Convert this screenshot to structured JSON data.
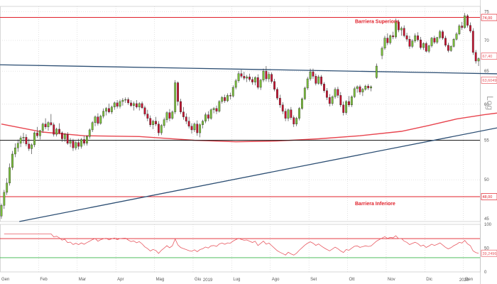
{
  "toolbar": {
    "buttons": [
      "up-triangle-icon",
      "z-icon",
      "zoom-out-icon",
      "crosshair-icon"
    ],
    "badge": "0"
  },
  "colors": {
    "up_fill": "#7bc23a",
    "down_fill": "#c8102e",
    "barrier": "#e0202a",
    "sma": "#e8454f",
    "trend": "#2c4e73",
    "support": "#111111",
    "rsi_line": "#e85a62",
    "rsi_upper": "#e0202a",
    "rsi_lower": "#39b54a"
  },
  "chart_data": {
    "type": "candlestick",
    "yscale": "log",
    "ylim": [
      45.2,
      76.0
    ],
    "yticks": [
      45,
      50,
      55,
      60,
      65,
      70,
      75
    ],
    "scale_label": "Log",
    "xlabels": [
      "Gen",
      "Feb",
      "Mar",
      "Apr",
      "Mag",
      "Giu",
      "Lug",
      "Ago",
      "Set",
      "Ott",
      "Nov",
      "Dic",
      "Gen"
    ],
    "year_labels": [
      "2019",
      "2020"
    ],
    "price_labels": [
      {
        "value": 74.0,
        "text": "74,00"
      },
      {
        "value": 67.4,
        "text": "67,40"
      },
      {
        "value": 63.6,
        "text": "63,6049"
      },
      {
        "value": 48.0,
        "text": "48,00"
      }
    ],
    "barriers": [
      {
        "name": "Barriera Superiore",
        "value": 74.0
      },
      {
        "name": "Barriera Inferiore",
        "value": 48.0
      }
    ],
    "support_level": 55.0,
    "upper_trendline": {
      "from": [
        0,
        66.0
      ],
      "to": [
        268,
        63.9
      ]
    },
    "lower_trendline": {
      "from": [
        6.5,
        45.2
      ],
      "to": [
        268,
        63.6
      ]
    },
    "sma": [
      [
        0,
        57.2
      ],
      [
        15,
        56.1
      ],
      [
        30,
        55.6
      ],
      [
        50,
        55.5
      ],
      [
        70,
        55.0
      ],
      [
        85,
        54.8
      ],
      [
        100,
        54.9
      ],
      [
        115,
        55.2
      ],
      [
        130,
        55.6
      ],
      [
        145,
        56.2
      ],
      [
        155,
        57.0
      ],
      [
        165,
        57.9
      ],
      [
        175,
        58.5
      ],
      [
        185,
        59.0
      ],
      [
        195,
        59.5
      ],
      [
        205,
        60.1
      ],
      [
        215,
        60.8
      ],
      [
        225,
        61.3
      ],
      [
        235,
        61.8
      ],
      [
        245,
        62.3
      ],
      [
        255,
        62.8
      ],
      [
        268,
        63.6
      ]
    ],
    "channel": {
      "top": 73.0,
      "bottom": 67.4,
      "x_start": 205,
      "x_end": 268
    },
    "rsi": {
      "levels": [
        70,
        30
      ],
      "last_value": 39.2496,
      "last_label": "39,2496",
      "ticks": [
        100,
        50,
        0
      ]
    },
    "ohlc": [
      [
        0.0,
        45.8,
        47.2,
        45.5,
        47.0
      ],
      [
        1.0,
        47.0,
        48.8,
        46.6,
        48.5
      ],
      [
        2.0,
        48.5,
        50.2,
        48.2,
        49.6
      ],
      [
        3.0,
        49.6,
        52.0,
        49.3,
        51.5
      ],
      [
        4.0,
        51.5,
        53.6,
        51.2,
        53.2
      ],
      [
        5.0,
        53.2,
        54.6,
        52.8,
        54.0
      ],
      [
        6.0,
        54.0,
        55.1,
        53.5,
        54.6
      ],
      [
        7.0,
        54.6,
        55.6,
        54.1,
        55.3
      ],
      [
        8.0,
        55.3,
        56.0,
        54.6,
        55.4
      ],
      [
        9.0,
        55.4,
        55.8,
        54.2,
        54.5
      ],
      [
        10.0,
        54.5,
        55.2,
        53.6,
        53.9
      ],
      [
        11.0,
        53.9,
        54.6,
        53.2,
        54.4
      ],
      [
        12.0,
        54.4,
        56.2,
        54.1,
        56.0
      ],
      [
        13.0,
        56.0,
        56.8,
        55.3,
        55.6
      ],
      [
        14.0,
        55.6,
        56.4,
        55.1,
        56.3
      ],
      [
        15.0,
        56.3,
        57.4,
        56.0,
        57.2
      ],
      [
        16.0,
        57.2,
        58.0,
        56.5,
        56.8
      ],
      [
        17.0,
        56.8,
        57.6,
        56.3,
        57.4
      ],
      [
        18.0,
        57.4,
        58.6,
        56.9,
        57.1
      ],
      [
        19.0,
        57.1,
        57.4,
        55.5,
        55.8
      ],
      [
        20.0,
        55.8,
        56.7,
        55.5,
        56.5
      ],
      [
        21.0,
        56.5,
        57.3,
        55.8,
        56.0
      ],
      [
        22.0,
        56.0,
        56.2,
        54.8,
        55.2
      ],
      [
        23.0,
        55.2,
        56.0,
        54.8,
        55.8
      ],
      [
        24.0,
        55.8,
        56.1,
        54.4,
        54.6
      ],
      [
        25.0,
        54.6,
        55.3,
        54.1,
        54.9
      ],
      [
        26.0,
        54.9,
        55.2,
        53.6,
        54.0
      ],
      [
        27.0,
        54.0,
        54.9,
        53.7,
        54.7
      ],
      [
        28.0,
        54.7,
        55.2,
        53.8,
        54.2
      ],
      [
        29.0,
        54.2,
        55.3,
        53.9,
        55.1
      ],
      [
        30.0,
        55.1,
        55.6,
        54.3,
        54.6
      ],
      [
        31.0,
        54.6,
        55.7,
        54.3,
        55.5
      ],
      [
        32.0,
        55.5,
        56.6,
        55.2,
        56.4
      ],
      [
        33.0,
        56.4,
        57.6,
        56.1,
        57.4
      ],
      [
        34.0,
        57.4,
        58.4,
        56.9,
        58.2
      ],
      [
        35.0,
        58.2,
        58.7,
        57.0,
        57.3
      ],
      [
        36.0,
        57.3,
        58.5,
        57.1,
        58.3
      ],
      [
        37.0,
        58.3,
        59.4,
        58.0,
        59.0
      ],
      [
        38.0,
        59.0,
        59.6,
        58.4,
        59.4
      ],
      [
        39.0,
        59.4,
        60.1,
        58.7,
        58.9
      ],
      [
        40.0,
        58.9,
        59.8,
        58.6,
        59.6
      ],
      [
        41.0,
        59.6,
        60.4,
        59.2,
        60.2
      ],
      [
        42.0,
        60.2,
        60.6,
        59.4,
        59.7
      ],
      [
        43.0,
        59.7,
        60.7,
        59.4,
        60.4
      ],
      [
        44.0,
        60.4,
        60.9,
        59.8,
        60.6
      ],
      [
        45.0,
        60.6,
        61.0,
        60.2,
        60.7
      ],
      [
        46.0,
        60.7,
        61.0,
        59.9,
        60.2
      ],
      [
        47.0,
        60.2,
        60.6,
        59.6,
        59.8
      ],
      [
        48.0,
        59.8,
        60.4,
        59.1,
        60.1
      ],
      [
        49.0,
        60.1,
        60.6,
        59.4,
        59.6
      ],
      [
        50.0,
        59.6,
        60.3,
        59.1,
        60.1
      ],
      [
        51.0,
        60.1,
        60.4,
        59.3,
        59.5
      ],
      [
        52.0,
        59.5,
        59.8,
        58.3,
        58.6
      ],
      [
        53.0,
        58.6,
        59.2,
        57.6,
        58.0
      ],
      [
        54.0,
        58.0,
        58.4,
        56.8,
        57.1
      ],
      [
        55.0,
        57.1,
        57.8,
        56.5,
        57.6
      ],
      [
        56.0,
        57.6,
        58.2,
        56.9,
        57.2
      ],
      [
        57.0,
        57.2,
        57.6,
        55.6,
        56.0
      ],
      [
        58.0,
        56.0,
        57.2,
        55.7,
        57.0
      ],
      [
        59.0,
        57.0,
        58.1,
        56.7,
        57.8
      ],
      [
        60.0,
        57.8,
        59.0,
        57.4,
        58.8
      ],
      [
        61.0,
        58.8,
        59.3,
        57.6,
        58.0
      ],
      [
        62.0,
        58.0,
        59.1,
        57.8,
        58.9
      ],
      [
        63.0,
        58.9,
        63.6,
        58.6,
        63.2
      ],
      [
        64.0,
        63.2,
        63.4,
        59.8,
        60.4
      ],
      [
        65.0,
        60.4,
        60.8,
        58.6,
        58.9
      ],
      [
        66.0,
        58.9,
        59.6,
        57.8,
        58.2
      ],
      [
        67.0,
        58.2,
        58.7,
        57.2,
        57.6
      ],
      [
        68.0,
        57.6,
        58.2,
        56.6,
        56.9
      ],
      [
        69.0,
        56.9,
        57.3,
        55.9,
        56.4
      ],
      [
        70.0,
        56.4,
        57.4,
        56.1,
        57.2
      ],
      [
        71.0,
        57.2,
        57.7,
        55.6,
        56.0
      ],
      [
        72.0,
        56.0,
        57.3,
        55.4,
        57.1
      ],
      [
        73.0,
        57.1,
        57.8,
        56.6,
        57.6
      ],
      [
        74.0,
        57.6,
        58.8,
        57.3,
        58.5
      ],
      [
        75.0,
        58.5,
        59.0,
        57.6,
        58.0
      ],
      [
        76.0,
        58.0,
        59.4,
        57.8,
        59.2
      ],
      [
        77.0,
        59.2,
        59.6,
        58.7,
        59.4
      ],
      [
        78.0,
        59.4,
        59.8,
        58.6,
        59.0
      ],
      [
        79.0,
        59.0,
        60.6,
        58.8,
        60.4
      ],
      [
        80.0,
        60.4,
        61.2,
        60.1,
        61.0
      ],
      [
        81.0,
        61.0,
        61.4,
        60.2,
        60.5
      ],
      [
        82.0,
        60.5,
        61.6,
        60.3,
        61.3
      ],
      [
        83.0,
        61.3,
        61.7,
        60.7,
        61.2
      ],
      [
        84.0,
        61.2,
        62.8,
        61.0,
        62.5
      ],
      [
        85.0,
        62.5,
        63.8,
        62.2,
        63.5
      ],
      [
        86.0,
        63.5,
        65.0,
        63.2,
        64.6
      ],
      [
        87.0,
        64.6,
        65.2,
        63.9,
        64.2
      ],
      [
        88.0,
        64.2,
        64.9,
        63.6,
        63.9
      ],
      [
        89.0,
        63.9,
        64.4,
        63.3,
        64.1
      ],
      [
        90.0,
        64.1,
        64.6,
        63.4,
        63.7
      ],
      [
        91.0,
        63.7,
        64.1,
        62.9,
        63.3
      ],
      [
        92.0,
        63.3,
        64.2,
        62.8,
        64.0
      ],
      [
        93.0,
        64.0,
        64.5,
        62.2,
        62.5
      ],
      [
        94.0,
        62.5,
        63.8,
        62.1,
        63.6
      ],
      [
        95.0,
        63.6,
        65.4,
        63.3,
        65.0
      ],
      [
        96.0,
        65.0,
        65.8,
        63.4,
        63.8
      ],
      [
        97.0,
        63.8,
        64.9,
        63.3,
        64.5
      ],
      [
        98.0,
        64.5,
        64.8,
        63.1,
        63.4
      ],
      [
        99.0,
        63.4,
        63.8,
        61.9,
        62.2
      ],
      [
        100.0,
        62.2,
        62.5,
        60.6,
        60.9
      ],
      [
        101.0,
        60.9,
        61.4,
        59.5,
        59.9
      ],
      [
        102.0,
        59.9,
        60.3,
        58.6,
        59.0
      ],
      [
        103.0,
        59.0,
        59.4,
        57.6,
        58.0
      ],
      [
        104.0,
        58.0,
        59.4,
        57.6,
        59.2
      ],
      [
        105.0,
        59.2,
        59.6,
        57.8,
        58.1
      ],
      [
        106.0,
        58.1,
        58.4,
        56.8,
        57.2
      ],
      [
        107.0,
        57.2,
        58.2,
        56.9,
        58.0
      ],
      [
        108.0,
        58.0,
        59.6,
        57.7,
        59.4
      ],
      [
        109.0,
        59.4,
        61.0,
        59.2,
        60.8
      ],
      [
        110.0,
        60.8,
        62.6,
        60.6,
        62.4
      ],
      [
        111.0,
        62.4,
        64.1,
        62.1,
        63.8
      ],
      [
        112.0,
        63.8,
        65.4,
        63.5,
        64.9
      ],
      [
        113.0,
        64.9,
        65.4,
        63.8,
        64.2
      ],
      [
        114.0,
        64.2,
        64.6,
        62.8,
        63.1
      ],
      [
        115.0,
        63.1,
        64.4,
        62.9,
        64.1
      ],
      [
        116.0,
        64.1,
        64.4,
        62.7,
        63.0
      ],
      [
        117.0,
        63.0,
        63.3,
        61.7,
        62.0
      ],
      [
        118.0,
        62.0,
        62.4,
        60.6,
        61.0
      ],
      [
        119.0,
        61.0,
        61.5,
        59.7,
        60.1
      ],
      [
        120.0,
        60.1,
        61.3,
        59.8,
        61.1
      ],
      [
        121.0,
        61.1,
        62.5,
        60.8,
        62.2
      ],
      [
        122.0,
        62.2,
        62.6,
        60.9,
        61.3
      ],
      [
        123.0,
        61.3,
        61.8,
        59.6,
        59.9
      ],
      [
        124.0,
        59.9,
        60.4,
        58.4,
        58.8
      ],
      [
        125.0,
        58.8,
        60.6,
        58.5,
        60.4
      ],
      [
        126.0,
        60.4,
        61.2,
        59.6,
        59.9
      ],
      [
        127.0,
        59.9,
        61.3,
        59.6,
        61.1
      ],
      [
        128.0,
        61.1,
        62.6,
        60.9,
        62.3
      ],
      [
        129.0,
        62.3,
        62.8,
        61.7,
        62.6
      ],
      [
        130.0,
        62.6,
        62.9,
        61.4,
        61.8
      ],
      [
        131.0,
        61.8,
        62.4,
        61.2,
        62.2
      ],
      [
        132.0,
        62.2,
        62.9,
        62.0,
        62.7
      ],
      [
        133.0,
        62.7,
        63.0,
        62.1,
        62.4
      ],
      [
        134.0,
        62.4,
        62.8,
        61.9,
        62.6
      ],
      [
        136.0,
        64.0,
        66.2,
        63.8,
        65.8
      ],
      [
        138.0,
        67.5,
        69.0,
        66.9,
        68.7
      ],
      [
        139.0,
        68.7,
        70.8,
        68.4,
        70.4
      ],
      [
        140.0,
        70.4,
        71.2,
        69.2,
        69.6
      ],
      [
        141.0,
        69.6,
        71.0,
        69.3,
        70.8
      ],
      [
        142.0,
        70.8,
        71.5,
        70.2,
        70.6
      ],
      [
        143.0,
        70.6,
        73.8,
        70.3,
        73.2
      ],
      [
        144.0,
        73.2,
        73.6,
        71.4,
        71.8
      ],
      [
        145.0,
        71.8,
        72.4,
        70.8,
        72.1
      ],
      [
        146.0,
        72.1,
        72.6,
        70.5,
        70.8
      ],
      [
        147.0,
        70.8,
        71.3,
        69.8,
        70.2
      ],
      [
        148.0,
        70.2,
        70.8,
        68.6,
        69.0
      ],
      [
        149.0,
        69.0,
        70.2,
        68.7,
        69.9
      ],
      [
        150.0,
        69.9,
        71.2,
        69.6,
        70.8
      ],
      [
        151.0,
        70.8,
        71.4,
        69.8,
        70.1
      ],
      [
        152.0,
        70.1,
        70.6,
        68.5,
        68.8
      ],
      [
        153.0,
        68.8,
        69.7,
        68.4,
        69.5
      ],
      [
        154.0,
        69.5,
        69.8,
        68.0,
        68.2
      ],
      [
        155.0,
        68.2,
        69.3,
        67.9,
        69.1
      ],
      [
        156.0,
        69.1,
        70.6,
        68.8,
        70.4
      ],
      [
        157.0,
        70.4,
        70.8,
        69.4,
        69.7
      ],
      [
        158.0,
        69.7,
        70.6,
        69.4,
        70.5
      ],
      [
        159.0,
        70.5,
        71.8,
        70.2,
        71.5
      ],
      [
        160.0,
        71.5,
        71.8,
        70.1,
        70.4
      ],
      [
        161.0,
        70.4,
        70.8,
        68.9,
        69.2
      ],
      [
        162.0,
        69.2,
        69.6,
        68.0,
        68.3
      ],
      [
        163.0,
        68.3,
        69.2,
        68.1,
        69.0
      ],
      [
        164.0,
        69.0,
        70.4,
        68.8,
        70.2
      ],
      [
        165.0,
        70.2,
        71.4,
        70.0,
        71.1
      ],
      [
        166.0,
        71.1,
        72.8,
        70.9,
        72.5
      ],
      [
        167.0,
        72.5,
        73.2,
        71.8,
        72.2
      ],
      [
        168.0,
        72.2,
        74.8,
        72.0,
        74.3
      ],
      [
        169.0,
        74.3,
        74.6,
        72.2,
        72.6
      ],
      [
        170.0,
        72.6,
        73.1,
        71.3,
        71.6
      ],
      [
        171.0,
        71.6,
        72.1,
        67.6,
        68.0
      ],
      [
        172.0,
        68.0,
        68.4,
        66.2,
        66.6
      ],
      [
        173.0,
        66.6,
        67.2,
        65.8,
        67.0
      ]
    ]
  }
}
